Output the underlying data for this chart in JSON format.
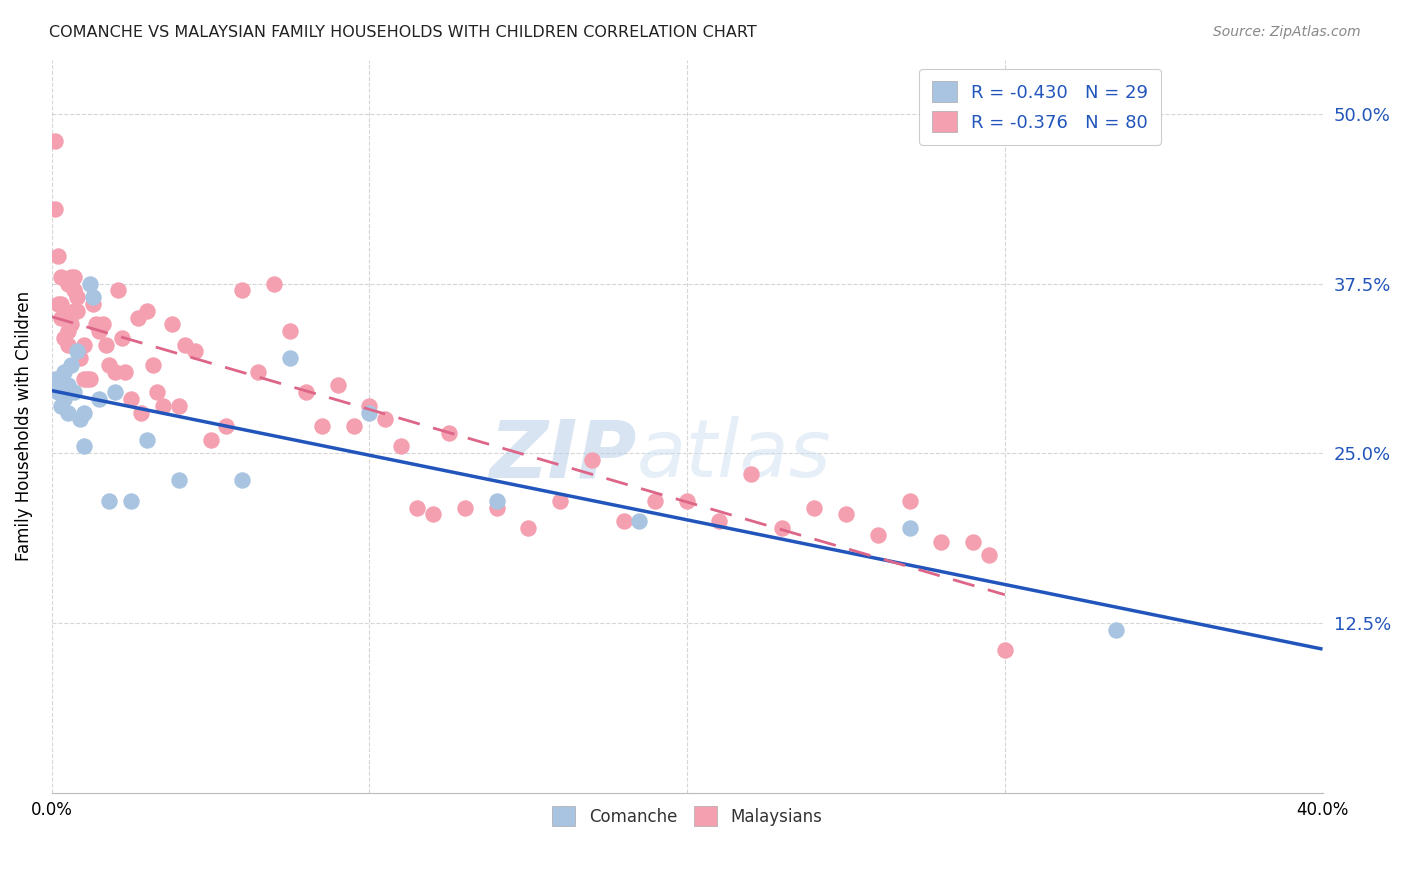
{
  "title": "COMANCHE VS MALAYSIAN FAMILY HOUSEHOLDS WITH CHILDREN CORRELATION CHART",
  "source": "Source: ZipAtlas.com",
  "ylabel": "Family Households with Children",
  "right_yticks": [
    "50.0%",
    "37.5%",
    "25.0%",
    "12.5%"
  ],
  "right_ytick_vals": [
    0.5,
    0.375,
    0.25,
    0.125
  ],
  "xlim": [
    0.0,
    0.4
  ],
  "ylim": [
    0.0,
    0.54
  ],
  "comanche_color": "#a8c4e0",
  "malaysian_color": "#f4a0b0",
  "comanche_line_color": "#2255bb",
  "malaysian_line_color": "#dd6688",
  "comanche_R": "-0.430",
  "comanche_N": "29",
  "malaysian_R": "-0.376",
  "malaysian_N": "80",
  "comanche_x": [
    0.001,
    0.002,
    0.003,
    0.003,
    0.004,
    0.004,
    0.005,
    0.005,
    0.006,
    0.007,
    0.008,
    0.009,
    0.01,
    0.01,
    0.012,
    0.013,
    0.015,
    0.018,
    0.02,
    0.025,
    0.03,
    0.04,
    0.06,
    0.075,
    0.1,
    0.14,
    0.185,
    0.27,
    0.335
  ],
  "comanche_y": [
    0.305,
    0.295,
    0.3,
    0.285,
    0.31,
    0.29,
    0.3,
    0.28,
    0.315,
    0.295,
    0.325,
    0.275,
    0.28,
    0.255,
    0.375,
    0.365,
    0.29,
    0.215,
    0.295,
    0.215,
    0.26,
    0.23,
    0.23,
    0.32,
    0.28,
    0.215,
    0.2,
    0.195,
    0.12
  ],
  "malaysian_x": [
    0.001,
    0.001,
    0.002,
    0.002,
    0.003,
    0.003,
    0.003,
    0.004,
    0.004,
    0.005,
    0.005,
    0.005,
    0.006,
    0.006,
    0.007,
    0.007,
    0.007,
    0.008,
    0.008,
    0.009,
    0.01,
    0.01,
    0.011,
    0.012,
    0.013,
    0.014,
    0.015,
    0.016,
    0.017,
    0.018,
    0.02,
    0.021,
    0.022,
    0.023,
    0.025,
    0.027,
    0.028,
    0.03,
    0.032,
    0.033,
    0.035,
    0.038,
    0.04,
    0.042,
    0.045,
    0.05,
    0.055,
    0.06,
    0.065,
    0.07,
    0.075,
    0.08,
    0.085,
    0.09,
    0.095,
    0.1,
    0.105,
    0.11,
    0.115,
    0.12,
    0.125,
    0.13,
    0.14,
    0.15,
    0.16,
    0.17,
    0.18,
    0.19,
    0.2,
    0.21,
    0.22,
    0.23,
    0.24,
    0.25,
    0.26,
    0.27,
    0.28,
    0.29,
    0.295,
    0.3
  ],
  "malaysian_y": [
    0.48,
    0.43,
    0.36,
    0.395,
    0.35,
    0.36,
    0.38,
    0.335,
    0.35,
    0.33,
    0.34,
    0.375,
    0.345,
    0.38,
    0.37,
    0.355,
    0.38,
    0.365,
    0.355,
    0.32,
    0.305,
    0.33,
    0.305,
    0.305,
    0.36,
    0.345,
    0.34,
    0.345,
    0.33,
    0.315,
    0.31,
    0.37,
    0.335,
    0.31,
    0.29,
    0.35,
    0.28,
    0.355,
    0.315,
    0.295,
    0.285,
    0.345,
    0.285,
    0.33,
    0.325,
    0.26,
    0.27,
    0.37,
    0.31,
    0.375,
    0.34,
    0.295,
    0.27,
    0.3,
    0.27,
    0.285,
    0.275,
    0.255,
    0.21,
    0.205,
    0.265,
    0.21,
    0.21,
    0.195,
    0.215,
    0.245,
    0.2,
    0.215,
    0.215,
    0.2,
    0.235,
    0.195,
    0.21,
    0.205,
    0.19,
    0.215,
    0.185,
    0.185,
    0.175,
    0.105
  ],
  "watermark_zip": "ZIP",
  "watermark_atlas": "atlas",
  "background_color": "#ffffff",
  "grid_color": "#cccccc"
}
